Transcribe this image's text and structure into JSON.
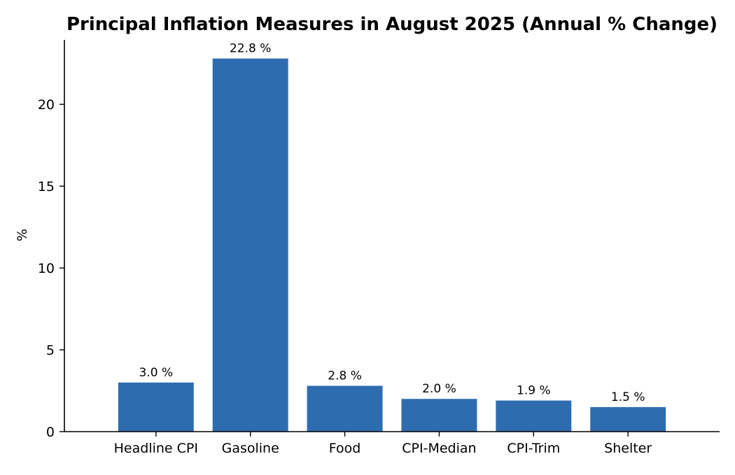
{
  "chart_data": {
    "type": "bar",
    "title": "Principal Inflation Measures in August 2025 (Annual % Change)",
    "xlabel": "",
    "ylabel": "%",
    "categories": [
      "Headline CPI",
      "Gasoline",
      "Food",
      "CPI-Median",
      "CPI-Trim",
      "Shelter"
    ],
    "values": [
      3.0,
      22.8,
      2.8,
      2.0,
      1.9,
      1.5
    ],
    "value_labels": [
      "3.0 %",
      "22.8 %",
      "2.8 %",
      "2.0 %",
      "1.9 %",
      "1.5 %"
    ],
    "yticks": [
      0,
      5,
      10,
      15,
      20
    ],
    "ylim": [
      0,
      23.94
    ],
    "grid": false,
    "legend": "none",
    "bar_color": "#2e6cb0",
    "spines": [
      "left",
      "bottom"
    ]
  }
}
